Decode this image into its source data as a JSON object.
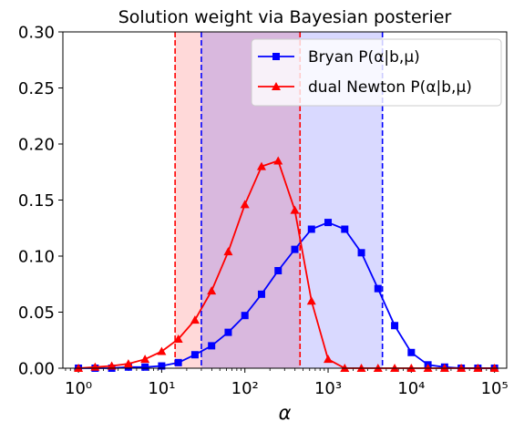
{
  "chart_data": {
    "type": "line",
    "title": "Solution weight via Bayesian posterier",
    "xlabel": "α",
    "ylabel": "",
    "xscale": "log",
    "xlim": [
      0.65,
      140000
    ],
    "ylim": [
      0,
      0.3
    ],
    "x_ticks": [
      {
        "value": 1,
        "label": "10⁰"
      },
      {
        "value": 10,
        "label": "10¹"
      },
      {
        "value": 100,
        "label": "10²"
      },
      {
        "value": 1000,
        "label": "10³"
      },
      {
        "value": 10000,
        "label": "10⁴"
      },
      {
        "value": 100000,
        "label": "10⁵"
      }
    ],
    "y_ticks": [
      "0.00",
      "0.05",
      "0.10",
      "0.15",
      "0.20",
      "0.25",
      "0.30"
    ],
    "legend_position": "top-right",
    "series": [
      {
        "name": "Bryan P(α|b,μ)",
        "color": "#0000ff",
        "marker": "square",
        "x": [
          1,
          1.585,
          2.512,
          3.981,
          6.31,
          10,
          15.85,
          25.12,
          39.81,
          63.1,
          100,
          158.5,
          251.2,
          398.1,
          631,
          1000,
          1585,
          2512,
          3981,
          6310,
          10000,
          15850,
          25120,
          39810,
          63100,
          100000
        ],
        "y": [
          0,
          0,
          0,
          0.001,
          0.001,
          0.002,
          0.005,
          0.012,
          0.02,
          0.032,
          0.047,
          0.066,
          0.087,
          0.106,
          0.124,
          0.13,
          0.124,
          0.103,
          0.071,
          0.038,
          0.014,
          0.003,
          0.001,
          0,
          0,
          0
        ]
      },
      {
        "name": "dual Newton P(α|b,μ)",
        "color": "#ff0000",
        "marker": "triangle",
        "x": [
          1,
          1.585,
          2.512,
          3.981,
          6.31,
          10,
          15.85,
          25.12,
          39.81,
          63.1,
          100,
          158.5,
          251.2,
          398.1,
          631,
          1000,
          1585,
          2512,
          3981,
          6310,
          10000,
          15850,
          25120,
          39810,
          63100,
          100000
        ],
        "y": [
          0,
          0.001,
          0.002,
          0.004,
          0.008,
          0.015,
          0.026,
          0.043,
          0.069,
          0.104,
          0.146,
          0.18,
          0.185,
          0.141,
          0.06,
          0.008,
          0,
          0,
          0,
          0,
          0,
          0,
          0,
          0,
          0,
          0
        ]
      }
    ],
    "bands": [
      {
        "series": "dual Newton P(α|b,μ)",
        "x_min": 14.5,
        "x_max": 460,
        "color": "#ff0000"
      },
      {
        "series": "Bryan P(α|b,μ)",
        "x_min": 30,
        "x_max": 4500,
        "color": "#0000ff"
      }
    ]
  }
}
